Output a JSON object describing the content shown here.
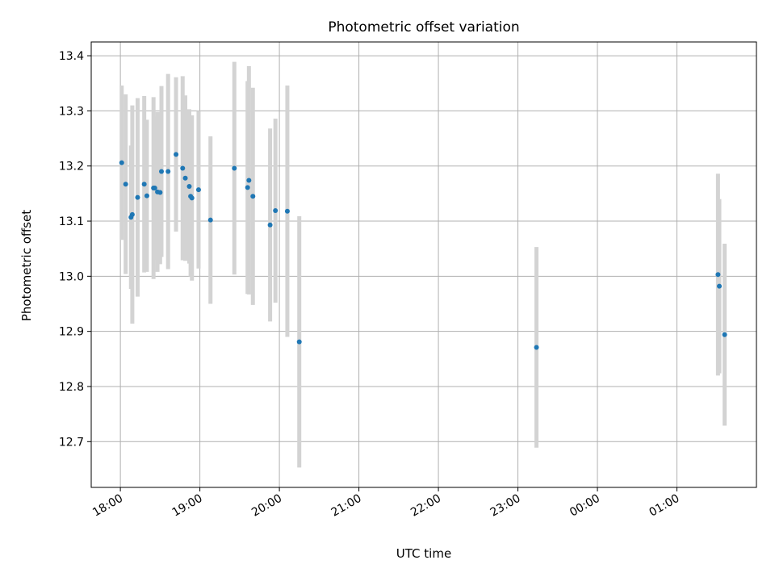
{
  "chart_data": {
    "type": "scatter",
    "title": "Photometric offset variation",
    "xlabel": "UTC time",
    "ylabel": "Photometric offset",
    "x_ticks": [
      "18:00",
      "19:00",
      "20:00",
      "21:00",
      "22:00",
      "23:00",
      "00:00",
      "01:00"
    ],
    "y_ticks": [
      "12.7",
      "12.8",
      "12.9",
      "13.0",
      "13.1",
      "13.2",
      "13.3",
      "13.4"
    ],
    "ylim": [
      12.617,
      13.425
    ],
    "xlim": [
      "17:38",
      "26:00"
    ],
    "grid": true,
    "colors": {
      "points": "#1f77b4",
      "errorbars": "#d3d3d3",
      "grid": "#b0b0b0"
    },
    "points": [
      {
        "x": "18:01",
        "y": 13.206,
        "err": 0.14
      },
      {
        "x": "18:04",
        "y": 13.167,
        "err": 0.163
      },
      {
        "x": "18:08",
        "y": 13.107,
        "err": 0.13
      },
      {
        "x": "18:09",
        "y": 13.112,
        "err": 0.198
      },
      {
        "x": "18:13",
        "y": 13.143,
        "err": 0.18
      },
      {
        "x": "18:18",
        "y": 13.167,
        "err": 0.16
      },
      {
        "x": "18:20",
        "y": 13.146,
        "err": 0.138
      },
      {
        "x": "18:25",
        "y": 13.16,
        "err": 0.165
      },
      {
        "x": "18:26",
        "y": 13.16,
        "err": 0.13
      },
      {
        "x": "18:28",
        "y": 13.153,
        "err": 0.145
      },
      {
        "x": "18:30",
        "y": 13.152,
        "err": 0.13
      },
      {
        "x": "18:31",
        "y": 13.19,
        "err": 0.155
      },
      {
        "x": "18:36",
        "y": 13.19,
        "err": 0.177
      },
      {
        "x": "18:42",
        "y": 13.221,
        "err": 0.14
      },
      {
        "x": "18:47",
        "y": 13.196,
        "err": 0.167
      },
      {
        "x": "18:49",
        "y": 13.178,
        "err": 0.15
      },
      {
        "x": "18:52",
        "y": 13.163,
        "err": 0.14
      },
      {
        "x": "18:53",
        "y": 13.145,
        "err": 0.145
      },
      {
        "x": "18:54",
        "y": 13.142,
        "err": 0.15
      },
      {
        "x": "18:59",
        "y": 13.157,
        "err": 0.143
      },
      {
        "x": "19:08",
        "y": 13.102,
        "err": 0.152
      },
      {
        "x": "19:26",
        "y": 13.196,
        "err": 0.193
      },
      {
        "x": "19:36",
        "y": 13.161,
        "err": 0.193
      },
      {
        "x": "19:37",
        "y": 13.174,
        "err": 0.207
      },
      {
        "x": "19:40",
        "y": 13.145,
        "err": 0.197
      },
      {
        "x": "19:53",
        "y": 13.093,
        "err": 0.175
      },
      {
        "x": "19:57",
        "y": 13.119,
        "err": 0.167
      },
      {
        "x": "20:06",
        "y": 13.118,
        "err": 0.228
      },
      {
        "x": "20:15",
        "y": 12.881,
        "err": 0.228
      },
      {
        "x": "23:14",
        "y": 12.871,
        "err": 0.182
      },
      {
        "x": "25:31",
        "y": 13.003,
        "err": 0.183
      },
      {
        "x": "25:32",
        "y": 12.982,
        "err": 0.158
      },
      {
        "x": "25:36",
        "y": 12.894,
        "err": 0.165
      }
    ]
  }
}
